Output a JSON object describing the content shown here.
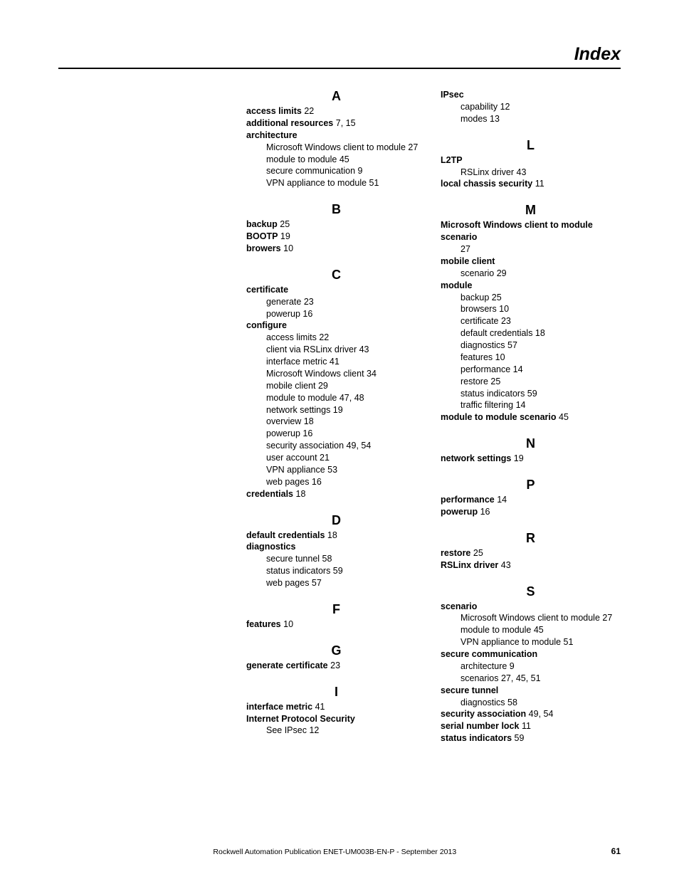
{
  "header": {
    "title": "Index"
  },
  "footer": {
    "text": "Rockwell Automation Publication ENET-UM003B-EN-P - September 2013",
    "page": "61"
  },
  "left_column": [
    {
      "letter": "A",
      "entries": [
        {
          "term": "access limits",
          "pages": " 22"
        },
        {
          "term": "additional resources",
          "pages": " 7, 15"
        },
        {
          "term": "architecture",
          "subs": [
            "Microsoft Windows client to module 27",
            "module to module 45",
            "secure communication 9",
            "VPN appliance to module 51"
          ]
        }
      ]
    },
    {
      "letter": "B",
      "entries": [
        {
          "term": "backup",
          "pages": " 25"
        },
        {
          "term": "BOOTP",
          "pages": " 19"
        },
        {
          "term": "browers",
          "pages": " 10"
        }
      ]
    },
    {
      "letter": "C",
      "entries": [
        {
          "term": "certificate",
          "subs": [
            "generate 23",
            "powerup 16"
          ]
        },
        {
          "term": "configure",
          "subs": [
            "access limits 22",
            "client via RSLinx driver 43",
            "interface metric 41",
            "Microsoft Windows client 34",
            "mobile client 29",
            "module to module 47, 48",
            "network settings 19",
            "overview 18",
            "powerup 16",
            "security association 49, 54",
            "user account 21",
            "VPN appliance 53",
            "web pages 16"
          ]
        },
        {
          "term": "credentials",
          "pages": " 18"
        }
      ]
    },
    {
      "letter": "D",
      "entries": [
        {
          "term": "default credentials",
          "pages": " 18"
        },
        {
          "term": "diagnostics",
          "subs": [
            "secure tunnel 58",
            "status indicators 59",
            "web pages 57"
          ]
        }
      ]
    },
    {
      "letter": "F",
      "entries": [
        {
          "term": "features",
          "pages": " 10"
        }
      ]
    },
    {
      "letter": "G",
      "entries": [
        {
          "term": "generate certificate",
          "pages": " 23"
        }
      ]
    },
    {
      "letter": "I",
      "entries": [
        {
          "term": "interface metric",
          "pages": " 41"
        },
        {
          "term": "Internet Protocol Security",
          "subs": [
            "See IPsec 12"
          ]
        }
      ]
    }
  ],
  "right_column": [
    {
      "letter": "",
      "entries": [
        {
          "term": "IPsec",
          "subs": [
            "capability 12",
            "modes 13"
          ]
        }
      ]
    },
    {
      "letter": "L",
      "entries": [
        {
          "term": "L2TP",
          "subs": [
            "RSLinx driver 43"
          ]
        },
        {
          "term": "local chassis security",
          "pages": " 11"
        }
      ]
    },
    {
      "letter": "M",
      "entries": [
        {
          "term": "Microsoft Windows client to module scenario",
          "subs": [
            "27"
          ]
        },
        {
          "term": "mobile client",
          "subs": [
            "scenario 29"
          ]
        },
        {
          "term": "module",
          "subs": [
            "backup 25",
            "browsers 10",
            "certificate 23",
            "default credentials 18",
            "diagnostics 57",
            "features 10",
            "performance 14",
            "restore 25",
            "status indicators 59",
            "traffic filtering 14"
          ]
        },
        {
          "term": "module to module scenario",
          "pages": " 45"
        }
      ]
    },
    {
      "letter": "N",
      "entries": [
        {
          "term": "network settings",
          "pages": " 19"
        }
      ]
    },
    {
      "letter": "P",
      "entries": [
        {
          "term": "performance",
          "pages": " 14"
        },
        {
          "term": "powerup",
          "pages": " 16"
        }
      ]
    },
    {
      "letter": "R",
      "entries": [
        {
          "term": "restore",
          "pages": " 25"
        },
        {
          "term": "RSLinx driver",
          "pages": " 43"
        }
      ]
    },
    {
      "letter": "S",
      "entries": [
        {
          "term": "scenario",
          "subs": [
            "Microsoft Windows client to module 27",
            "module to module 45",
            "VPN appliance to module 51"
          ]
        },
        {
          "term": "secure communication",
          "subs": [
            "architecture 9",
            "scenarios 27, 45, 51"
          ]
        },
        {
          "term": "secure tunnel",
          "subs": [
            "diagnostics 58"
          ]
        },
        {
          "term": "security association",
          "pages": " 49, 54"
        },
        {
          "term": "serial number lock",
          "pages": " 11"
        },
        {
          "term": "status indicators",
          "pages": " 59"
        }
      ]
    }
  ]
}
